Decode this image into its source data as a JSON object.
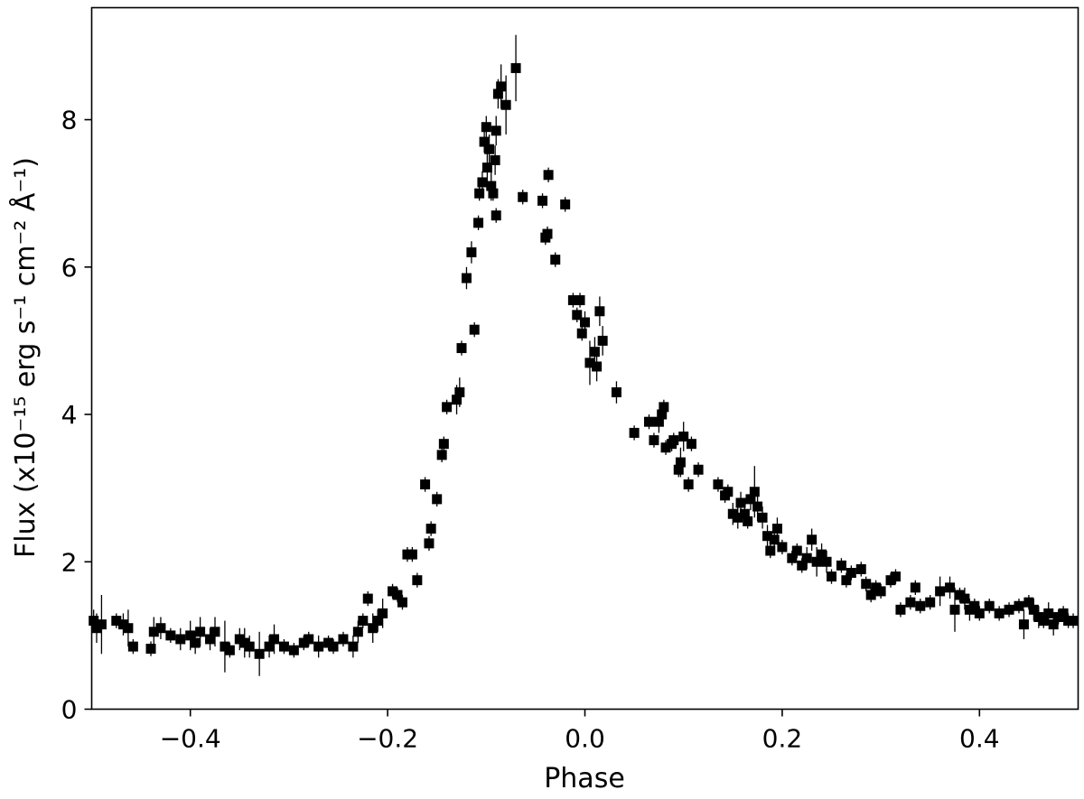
{
  "chart_data": {
    "type": "scatter",
    "x_label": "Phase",
    "y_label": "Flux (x10⁻¹⁵ erg s⁻¹ cm⁻² Å⁻¹)",
    "xlim": [
      -0.5,
      0.5
    ],
    "ylim": [
      0,
      9.52
    ],
    "xticks": [
      {
        "value": -0.4,
        "label": "−0.4"
      },
      {
        "value": -0.2,
        "label": "−0.2"
      },
      {
        "value": 0.0,
        "label": "0.0"
      },
      0.2,
      0.4
    ],
    "yticks": [
      0,
      2,
      4,
      6,
      8
    ],
    "color": "#000000",
    "x": [
      -0.498,
      -0.495,
      -0.49,
      -0.475,
      -0.468,
      -0.463,
      -0.458,
      -0.44,
      -0.437,
      -0.43,
      -0.42,
      -0.41,
      -0.4,
      -0.395,
      -0.39,
      -0.38,
      -0.375,
      -0.365,
      -0.36,
      -0.35,
      -0.345,
      -0.34,
      -0.33,
      -0.32,
      -0.315,
      -0.305,
      -0.295,
      -0.285,
      -0.28,
      -0.27,
      -0.26,
      -0.255,
      -0.245,
      -0.235,
      -0.23,
      -0.225,
      -0.22,
      -0.215,
      -0.21,
      -0.205,
      -0.195,
      -0.19,
      -0.185,
      -0.18,
      -0.175,
      -0.17,
      -0.162,
      -0.158,
      -0.156,
      -0.15,
      -0.145,
      -0.143,
      -0.14,
      -0.13,
      -0.127,
      -0.125,
      -0.12,
      -0.115,
      -0.112,
      -0.108,
      -0.107,
      -0.104,
      -0.102,
      -0.1,
      -0.099,
      -0.097,
      -0.095,
      -0.093,
      -0.091,
      -0.09,
      -0.09,
      -0.088,
      -0.085,
      -0.08,
      -0.07,
      -0.063,
      -0.043,
      -0.04,
      -0.038,
      -0.037,
      -0.03,
      -0.02,
      -0.012,
      -0.008,
      -0.005,
      -0.003,
      0.0,
      0.005,
      0.01,
      0.012,
      0.015,
      0.018,
      0.032,
      0.05,
      0.065,
      0.07,
      0.075,
      0.078,
      0.08,
      0.082,
      0.088,
      0.09,
      0.095,
      0.097,
      0.1,
      0.105,
      0.108,
      0.115,
      0.135,
      0.142,
      0.145,
      0.15,
      0.155,
      0.158,
      0.162,
      0.165,
      0.168,
      0.172,
      0.175,
      0.18,
      0.185,
      0.188,
      0.192,
      0.195,
      0.2,
      0.21,
      0.215,
      0.22,
      0.225,
      0.23,
      0.235,
      0.24,
      0.245,
      0.25,
      0.26,
      0.265,
      0.27,
      0.28,
      0.285,
      0.29,
      0.295,
      0.3,
      0.31,
      0.315,
      0.32,
      0.33,
      0.335,
      0.34,
      0.35,
      0.36,
      0.37,
      0.375,
      0.38,
      0.385,
      0.39,
      0.395,
      0.4,
      0.41,
      0.42,
      0.43,
      0.44,
      0.445,
      0.45,
      0.455,
      0.46,
      0.465,
      0.47,
      0.475,
      0.48,
      0.485,
      0.49,
      0.495
    ],
    "values": [
      1.2,
      1.1,
      1.15,
      1.2,
      1.15,
      1.1,
      0.85,
      0.82,
      1.05,
      1.1,
      1.0,
      0.95,
      1.0,
      0.9,
      1.05,
      0.95,
      1.05,
      0.85,
      0.8,
      0.95,
      0.9,
      0.85,
      0.75,
      0.85,
      0.95,
      0.85,
      0.8,
      0.9,
      0.95,
      0.85,
      0.9,
      0.85,
      0.95,
      0.85,
      1.05,
      1.2,
      1.5,
      1.1,
      1.2,
      1.3,
      1.6,
      1.55,
      1.45,
      2.1,
      2.1,
      1.75,
      3.05,
      2.25,
      2.45,
      2.85,
      3.45,
      3.6,
      4.1,
      4.2,
      4.3,
      4.9,
      5.85,
      6.2,
      5.15,
      6.6,
      7.0,
      7.15,
      7.7,
      7.9,
      7.35,
      7.6,
      7.1,
      7.0,
      7.45,
      7.85,
      6.7,
      8.35,
      8.45,
      8.2,
      8.7,
      6.95,
      6.9,
      6.4,
      6.45,
      7.25,
      6.1,
      6.85,
      5.55,
      5.35,
      5.55,
      5.1,
      5.25,
      4.7,
      4.85,
      4.65,
      5.4,
      5.0,
      4.3,
      3.75,
      3.9,
      3.65,
      3.9,
      4.0,
      4.1,
      3.55,
      3.6,
      3.65,
      3.25,
      3.35,
      3.7,
      3.05,
      3.6,
      3.25,
      3.05,
      2.9,
      2.95,
      2.65,
      2.6,
      2.8,
      2.65,
      2.55,
      2.85,
      2.95,
      2.75,
      2.6,
      2.35,
      2.15,
      2.3,
      2.45,
      2.2,
      2.05,
      2.15,
      1.95,
      2.05,
      2.3,
      2.0,
      2.1,
      2.0,
      1.8,
      1.95,
      1.75,
      1.85,
      1.9,
      1.7,
      1.55,
      1.65,
      1.6,
      1.75,
      1.8,
      1.35,
      1.45,
      1.65,
      1.4,
      1.45,
      1.6,
      1.65,
      1.35,
      1.55,
      1.5,
      1.35,
      1.4,
      1.3,
      1.4,
      1.3,
      1.35,
      1.4,
      1.15,
      1.45,
      1.35,
      1.25,
      1.2,
      1.3,
      1.15,
      1.25,
      1.3,
      1.2,
      1.2
    ],
    "errors": [
      0.15,
      0.2,
      0.4,
      0.1,
      0.15,
      0.25,
      0.1,
      0.1,
      0.2,
      0.15,
      0.1,
      0.15,
      0.2,
      0.15,
      0.2,
      0.15,
      0.2,
      0.35,
      0.1,
      0.15,
      0.2,
      0.15,
      0.3,
      0.15,
      0.2,
      0.1,
      0.1,
      0.1,
      0.1,
      0.15,
      0.1,
      0.1,
      0.1,
      0.15,
      0.15,
      0.1,
      0.1,
      0.2,
      0.15,
      0.2,
      0.1,
      0.1,
      0.1,
      0.1,
      0.1,
      0.1,
      0.1,
      0.1,
      0.1,
      0.1,
      0.1,
      0.1,
      0.1,
      0.2,
      0.2,
      0.1,
      0.15,
      0.15,
      0.1,
      0.1,
      0.1,
      0.15,
      0.15,
      0.15,
      0.2,
      0.2,
      0.2,
      0.1,
      0.2,
      0.2,
      0.1,
      0.2,
      0.3,
      0.4,
      0.45,
      0.1,
      0.1,
      0.1,
      0.1,
      0.1,
      0.1,
      0.1,
      0.1,
      0.1,
      0.1,
      0.1,
      0.15,
      0.3,
      0.2,
      0.2,
      0.2,
      0.2,
      0.15,
      0.1,
      0.1,
      0.1,
      0.15,
      0.15,
      0.1,
      0.1,
      0.1,
      0.1,
      0.1,
      0.2,
      0.2,
      0.1,
      0.1,
      0.1,
      0.1,
      0.1,
      0.1,
      0.15,
      0.15,
      0.15,
      0.1,
      0.1,
      0.15,
      0.35,
      0.2,
      0.15,
      0.15,
      0.1,
      0.15,
      0.15,
      0.1,
      0.1,
      0.1,
      0.1,
      0.15,
      0.15,
      0.2,
      0.15,
      0.15,
      0.1,
      0.1,
      0.1,
      0.1,
      0.1,
      0.1,
      0.1,
      0.1,
      0.1,
      0.1,
      0.1,
      0.1,
      0.1,
      0.1,
      0.1,
      0.1,
      0.2,
      0.15,
      0.3,
      0.1,
      0.15,
      0.15,
      0.1,
      0.1,
      0.1,
      0.1,
      0.1,
      0.1,
      0.2,
      0.1,
      0.15,
      0.15,
      0.1,
      0.15,
      0.15,
      0.1,
      0.1,
      0.1,
      0.1
    ]
  }
}
